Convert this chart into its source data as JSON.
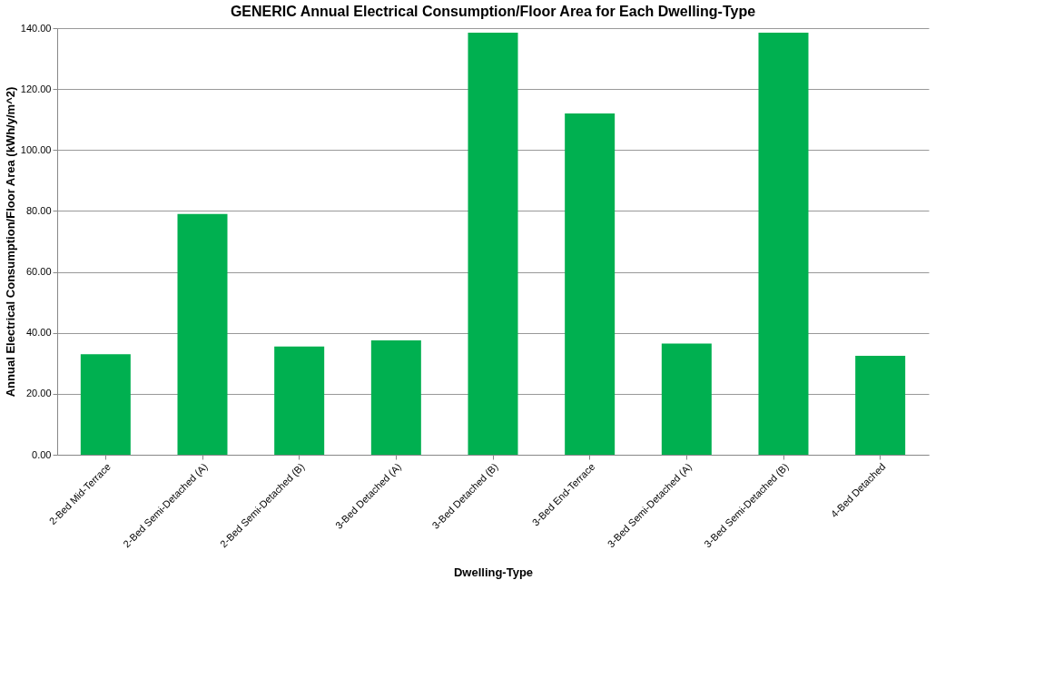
{
  "chart_data": {
    "type": "bar",
    "title": "GENERIC Annual Electrical Consumption/Floor  Area for Each Dwelling-Type",
    "xlabel": "Dwelling-Type",
    "ylabel": "Annual Electrical Consumption/Floor Area (kWh/y/m^2)",
    "categories": [
      "2-Bed Mid-Terrace",
      "2-Bed Semi-Detached (A)",
      "2-Bed Semi-Detached (B)",
      "3-Bed Detached (A)",
      "3-Bed Detached (B)",
      "3-Bed End-Terrace",
      "3-Bed Semi-Detached (A)",
      "3-Bed Semi-Detached (B)",
      "4-Bed Detached"
    ],
    "values": [
      33,
      79,
      35.5,
      37.5,
      138.5,
      112,
      36.5,
      138.5,
      32.5
    ],
    "color": "#00b050",
    "ylim": [
      0,
      140
    ],
    "yticks": [
      {
        "value": 0,
        "label": "0.00"
      },
      {
        "value": 20,
        "label": "20.00"
      },
      {
        "value": 40,
        "label": "40.00"
      },
      {
        "value": 60,
        "label": "60.00"
      },
      {
        "value": 80,
        "label": "80.00"
      },
      {
        "value": 100,
        "label": "100.00"
      },
      {
        "value": 120,
        "label": "120.00"
      },
      {
        "value": 140,
        "label": "140.00"
      }
    ],
    "grid": "y"
  }
}
